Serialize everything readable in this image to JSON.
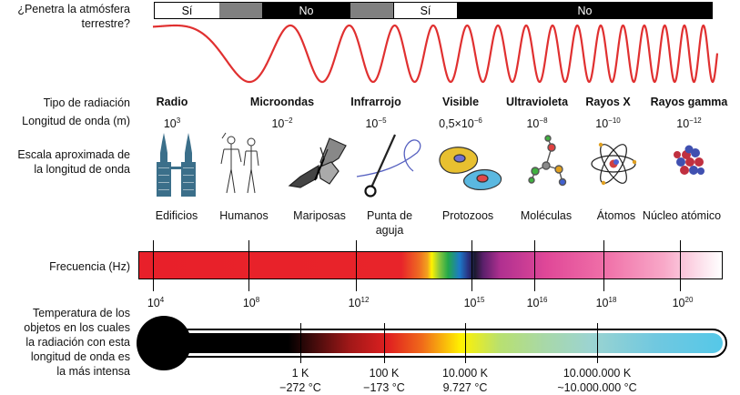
{
  "penetration": {
    "question_line1": "¿Penetra la atmósfera",
    "question_line2": "terrestre?",
    "segments": [
      {
        "label": "Sí",
        "bg": "#ffffff",
        "fg": "#000000"
      },
      {
        "label": "",
        "bg": "#808080",
        "fg": "#ffffff"
      },
      {
        "label": "No",
        "bg": "#000000",
        "fg": "#ffffff"
      },
      {
        "label": "",
        "bg": "#808080",
        "fg": "#ffffff"
      },
      {
        "label": "Sí",
        "bg": "#ffffff",
        "fg": "#000000"
      },
      {
        "label": "No",
        "bg": "#000000",
        "fg": "#ffffff"
      }
    ]
  },
  "row_labels": {
    "radiation_type": "Tipo de radiación",
    "wavelength": "Longitud de onda (m)",
    "scale_line1": "Escala aproximada de",
    "scale_line2": "la longitud de onda",
    "frequency": "Frecuencia (Hz)",
    "temperature_lines": [
      "Temperatura de los",
      "objetos en los cuales",
      "la radiación con esta",
      "longitud de onda es",
      "la más intensa"
    ]
  },
  "radiation_types": [
    {
      "name": "Radio",
      "wl_base": "10",
      "wl_exp": "3"
    },
    {
      "name": "Microondas",
      "wl_base": "10",
      "wl_exp": "−2"
    },
    {
      "name": "Infrarrojo",
      "wl_base": "10",
      "wl_exp": "−5"
    },
    {
      "name": "Visible",
      "wl_base": "0,5×10",
      "wl_exp": "−6"
    },
    {
      "name": "Ultravioleta",
      "wl_base": "10",
      "wl_exp": "−8"
    },
    {
      "name": "Rayos X",
      "wl_base": "10",
      "wl_exp": "−10"
    },
    {
      "name": "Rayos gamma",
      "wl_base": "10",
      "wl_exp": "−12"
    }
  ],
  "scale_objects": [
    {
      "label": "Edificios",
      "icon": "buildings-icon"
    },
    {
      "label": "Humanos",
      "icon": "humans-icon"
    },
    {
      "label": "Mariposas",
      "icon": "butterfly-icon"
    },
    {
      "label": "Punta de aguja",
      "line1": "Punta de",
      "line2": "aguja",
      "icon": "needle-icon"
    },
    {
      "label": "Protozoos",
      "icon": "protozoa-icon"
    },
    {
      "label": "Moléculas",
      "icon": "molecule-icon"
    },
    {
      "label": "Átomos",
      "icon": "atom-icon"
    },
    {
      "label": "Núcleo atómico",
      "icon": "nucleus-icon"
    }
  ],
  "frequency_ticks": [
    {
      "base": "10",
      "exp": "4"
    },
    {
      "base": "10",
      "exp": "8"
    },
    {
      "base": "10",
      "exp": "12"
    },
    {
      "base": "10",
      "exp": "15"
    },
    {
      "base": "10",
      "exp": "16"
    },
    {
      "base": "10",
      "exp": "18"
    },
    {
      "base": "10",
      "exp": "20"
    }
  ],
  "temperature_ticks": [
    {
      "k": "1 K",
      "c": "−272 °C"
    },
    {
      "k": "100 K",
      "c": "−173 °C"
    },
    {
      "k": "10.000 K",
      "c": "9.727 °C"
    },
    {
      "k": "10.000.000 K",
      "c": "~10.000.000 °C"
    }
  ],
  "colors": {
    "wave": "#e03030",
    "building": "#3b6f8a",
    "thermometer_fluid_end": "#55c8e8"
  }
}
